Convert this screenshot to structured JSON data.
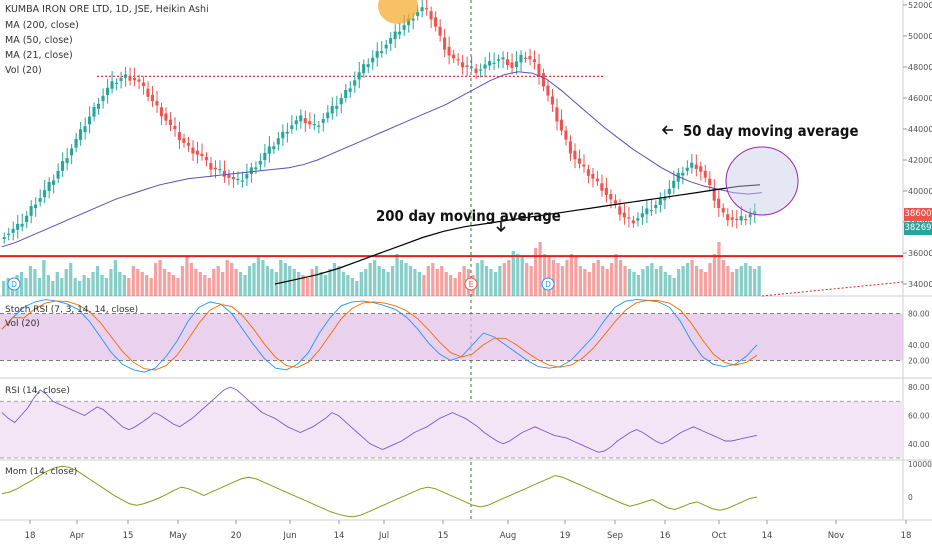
{
  "header": {
    "title": "KUMBA IRON ORE LTD, 1D, JSE, Heikin Ashi",
    "ma200": "MA (200, close)",
    "ma50": "MA (50, close)",
    "ma21": "MA (21, close)",
    "vol": "Vol (20)"
  },
  "indicators": {
    "stoch": "Stoch RSI (7, 3, 14, 14, close)",
    "stoch_vol": "Vol (20)",
    "rsi": "RSI (14, close)",
    "mom": "Mom (14, close)"
  },
  "annotations": {
    "ma50_label": "50 day moving average",
    "ma200_label": "200 day moving average"
  },
  "price_tags": {
    "last": "38600",
    "ma": "38269"
  },
  "colors": {
    "up": "#26a69a",
    "down": "#ef5350",
    "ma200": "#000000",
    "ma50": "#5b4fb5",
    "support": "#e02020",
    "stoch_fill": "#e1bee7",
    "rsi_fill": "#f3e5f5",
    "mom": "#8a9a1a",
    "circle_fill": "#c5cae9",
    "sun": "#f5a623"
  },
  "chart_data": {
    "type": "candlestick",
    "price_axis": {
      "ticks": [
        34000,
        36000,
        38000,
        40000,
        42000,
        44000,
        46000,
        48000,
        50000,
        52000
      ]
    },
    "x_ticks": [
      "18",
      "Apr",
      "15",
      "May",
      "20",
      "Jun",
      "14",
      "Jul",
      "15",
      "Aug",
      "19",
      "Sep",
      "16",
      "Oct",
      "14",
      "Nov",
      "18"
    ],
    "support_level": 35800,
    "resistance_level": 47400,
    "close": [
      37200,
      37300,
      37500,
      37700,
      38000,
      38400,
      38900,
      39300,
      39600,
      40000,
      40400,
      40800,
      41300,
      41800,
      42300,
      42800,
      43300,
      43800,
      44300,
      44800,
      45300,
      45800,
      46200,
      46600,
      46900,
      47100,
      47300,
      47400,
      47300,
      47200,
      47000,
      46600,
      46200,
      45800,
      45400,
      45000,
      44600,
      44200,
      43800,
      43400,
      43100,
      42800,
      42600,
      42400,
      42200,
      41800,
      41500,
      41400,
      41300,
      41100,
      40900,
      40700,
      40600,
      40800,
      41100,
      41400,
      41700,
      42000,
      42400,
      42700,
      43000,
      43400,
      43700,
      44000,
      44300,
      44500,
      44700,
      44500,
      44300,
      44200,
      44400,
      44700,
      45000,
      45300,
      45600,
      46000,
      46400,
      46800,
      47200,
      47600,
      48000,
      48300,
      48600,
      48900,
      49200,
      49500,
      49800,
      50100,
      50400,
      50700,
      51000,
      51300,
      51600,
      51800,
      51600,
      51200,
      50600,
      49900,
      49300,
      48800,
      48500,
      48300,
      48100,
      48000,
      47900,
      47800,
      47900,
      48100,
      48200,
      48400,
      48500,
      48500,
      48300,
      48000,
      48300,
      48600,
      48700,
      48500,
      48200,
      47600,
      46800,
      46100,
      45400,
      44600,
      43900,
      43200,
      42600,
      42100,
      41700,
      41400,
      41100,
      40800,
      40500,
      40200,
      39800,
      39400,
      39000,
      38600,
      38300,
      38100,
      38100,
      38300,
      38500,
      38700,
      38900,
      39100,
      39400,
      39800,
      40200,
      40600,
      41000,
      41300,
      41500,
      41700,
      41600,
      41300,
      40800,
      40200,
      39500,
      38900,
      38500,
      38300,
      38200,
      38100,
      38200,
      38300,
      38500,
      38600
    ],
    "ma50": [
      36400,
      36700,
      37100,
      37500,
      37900,
      38300,
      38700,
      39100,
      39500,
      39800,
      40100,
      40400,
      40600,
      40800,
      40900,
      41000,
      41100,
      41200,
      41300,
      41400,
      41500,
      41700,
      42000,
      42400,
      42800,
      43200,
      43600,
      44000,
      44400,
      44800,
      45200,
      45600,
      46100,
      46600,
      47100,
      47500,
      47700,
      47600,
      47200,
      46500,
      45700,
      44900,
      44100,
      43400,
      42700,
      42100,
      41500,
      41000,
      40600,
      40300,
      40100,
      39900,
      39800,
      39900
    ],
    "ma200": [
      34000,
      34300,
      34600,
      35000,
      35500,
      36000,
      36500,
      37000,
      37400,
      37700,
      37900,
      38100,
      38300,
      38500,
      38700,
      38900,
      39100,
      39300,
      39500,
      39700,
      39900,
      40100,
      40300,
      40400
    ],
    "volume_pct": [
      0.25,
      0.3,
      0.2,
      0.35,
      0.4,
      0.3,
      0.5,
      0.45,
      0.3,
      0.6,
      0.35,
      0.25,
      0.4,
      0.3,
      0.45,
      0.55,
      0.3,
      0.25,
      0.35,
      0.3,
      0.4,
      0.5,
      0.35,
      0.3,
      0.45,
      0.6,
      0.4,
      0.35,
      0.3,
      0.5,
      0.45,
      0.4,
      0.35,
      0.3,
      0.55,
      0.6,
      0.45,
      0.4,
      0.35,
      0.3,
      0.5,
      0.65,
      0.55,
      0.45,
      0.4,
      0.35,
      0.3,
      0.45,
      0.5,
      0.4,
      0.6,
      0.55,
      0.45,
      0.4,
      0.35,
      0.5,
      0.55,
      0.65,
      0.6,
      0.5,
      0.45,
      0.4,
      0.6,
      0.55,
      0.5,
      0.45,
      0.4,
      0.35,
      0.3,
      0.45,
      0.5,
      0.4,
      0.35,
      0.45,
      0.55,
      0.5,
      0.4,
      0.35,
      0.3,
      0.25,
      0.4,
      0.45,
      0.55,
      0.6,
      0.5,
      0.45,
      0.4,
      0.5,
      0.7,
      0.6,
      0.55,
      0.5,
      0.45,
      0.4,
      0.35,
      0.5,
      0.55,
      0.45,
      0.5,
      0.4,
      0.35,
      0.3,
      0.4,
      0.5,
      0.45,
      0.35,
      0.55,
      0.6,
      0.5,
      0.45,
      0.4,
      0.5,
      0.55,
      0.6,
      0.75,
      0.7,
      0.65,
      0.55,
      0.5,
      0.8,
      0.9,
      0.7,
      0.65,
      0.6,
      0.55,
      0.5,
      0.6,
      0.7,
      0.65,
      0.5,
      0.45,
      0.4,
      0.55,
      0.6,
      0.5,
      0.45,
      0.55,
      0.7,
      0.6,
      0.5,
      0.45,
      0.4,
      0.35,
      0.45,
      0.5,
      0.55,
      0.45,
      0.5,
      0.4,
      0.35,
      0.3,
      0.45,
      0.5,
      0.55,
      0.6,
      0.5,
      0.45,
      0.4,
      0.55,
      0.7,
      0.9,
      0.6,
      0.5,
      0.4,
      0.45,
      0.5,
      0.55,
      0.5,
      0.45,
      0.5
    ],
    "stoch": {
      "ticks": [
        20,
        40,
        80
      ],
      "k": [
        60,
        75,
        88,
        95,
        98,
        96,
        92,
        85,
        70,
        50,
        30,
        15,
        8,
        5,
        10,
        25,
        45,
        70,
        88,
        95,
        92,
        80,
        60,
        40,
        22,
        10,
        8,
        15,
        30,
        55,
        75,
        90,
        95,
        96,
        94,
        90,
        85,
        75,
        60,
        42,
        28,
        20,
        25,
        40,
        55,
        50,
        40,
        30,
        20,
        12,
        10,
        12,
        20,
        35,
        50,
        70,
        88,
        96,
        98,
        97,
        95,
        88,
        70,
        45,
        25,
        15,
        12,
        15,
        25,
        40
      ]
    },
    "rsi": {
      "ticks": [
        40,
        60,
        80
      ],
      "values": [
        62,
        58,
        55,
        60,
        65,
        72,
        78,
        75,
        70,
        68,
        66,
        64,
        62,
        60,
        63,
        66,
        64,
        60,
        56,
        52,
        50,
        52,
        55,
        58,
        62,
        60,
        57,
        54,
        52,
        55,
        58,
        62,
        66,
        70,
        74,
        78,
        80,
        78,
        74,
        70,
        66,
        62,
        60,
        58,
        55,
        52,
        50,
        48,
        50,
        52,
        55,
        58,
        62,
        60,
        56,
        52,
        48,
        44,
        40,
        38,
        36,
        38,
        40,
        42,
        45,
        48,
        50,
        52,
        55,
        58,
        60,
        62,
        60,
        58,
        55,
        52,
        48,
        45,
        42,
        40,
        42,
        45,
        48,
        50,
        52,
        50,
        48,
        46,
        45,
        44,
        42,
        40,
        38,
        36,
        34,
        35,
        38,
        42,
        45,
        48,
        50,
        48,
        45,
        42,
        40,
        42,
        45,
        48,
        50,
        52,
        50,
        48,
        46,
        44,
        42,
        42,
        43,
        44,
        45,
        46
      ]
    },
    "mom": {
      "ticks": [
        0,
        10000
      ],
      "values": [
        1000,
        1500,
        2500,
        3800,
        5000,
        6500,
        7800,
        8800,
        9300,
        9000,
        8000,
        6500,
        5000,
        3500,
        2000,
        500,
        -800,
        -2000,
        -2500,
        -2000,
        -1200,
        -300,
        800,
        2000,
        3000,
        2500,
        1500,
        500,
        1500,
        2500,
        3500,
        4500,
        5500,
        6000,
        5500,
        4500,
        3500,
        2500,
        1500,
        500,
        -500,
        -1500,
        -2500,
        -3500,
        -4500,
        -5200,
        -5800,
        -6000,
        -5500,
        -4500,
        -3500,
        -2500,
        -1500,
        -500,
        500,
        1500,
        2500,
        3000,
        2500,
        1500,
        500,
        -500,
        -1500,
        -2500,
        -3000,
        -2500,
        -1500,
        -500,
        500,
        1500,
        2500,
        3500,
        4500,
        5500,
        6500,
        6000,
        5000,
        4000,
        3000,
        2000,
        1000,
        0,
        -1000,
        -2000,
        -2800,
        -2200,
        -1500,
        -800,
        -2000,
        -3200,
        -3800,
        -3000,
        -2000,
        -1500,
        -2500,
        -3500,
        -4000,
        -3500,
        -2500,
        -1500,
        -500,
        0
      ]
    }
  }
}
